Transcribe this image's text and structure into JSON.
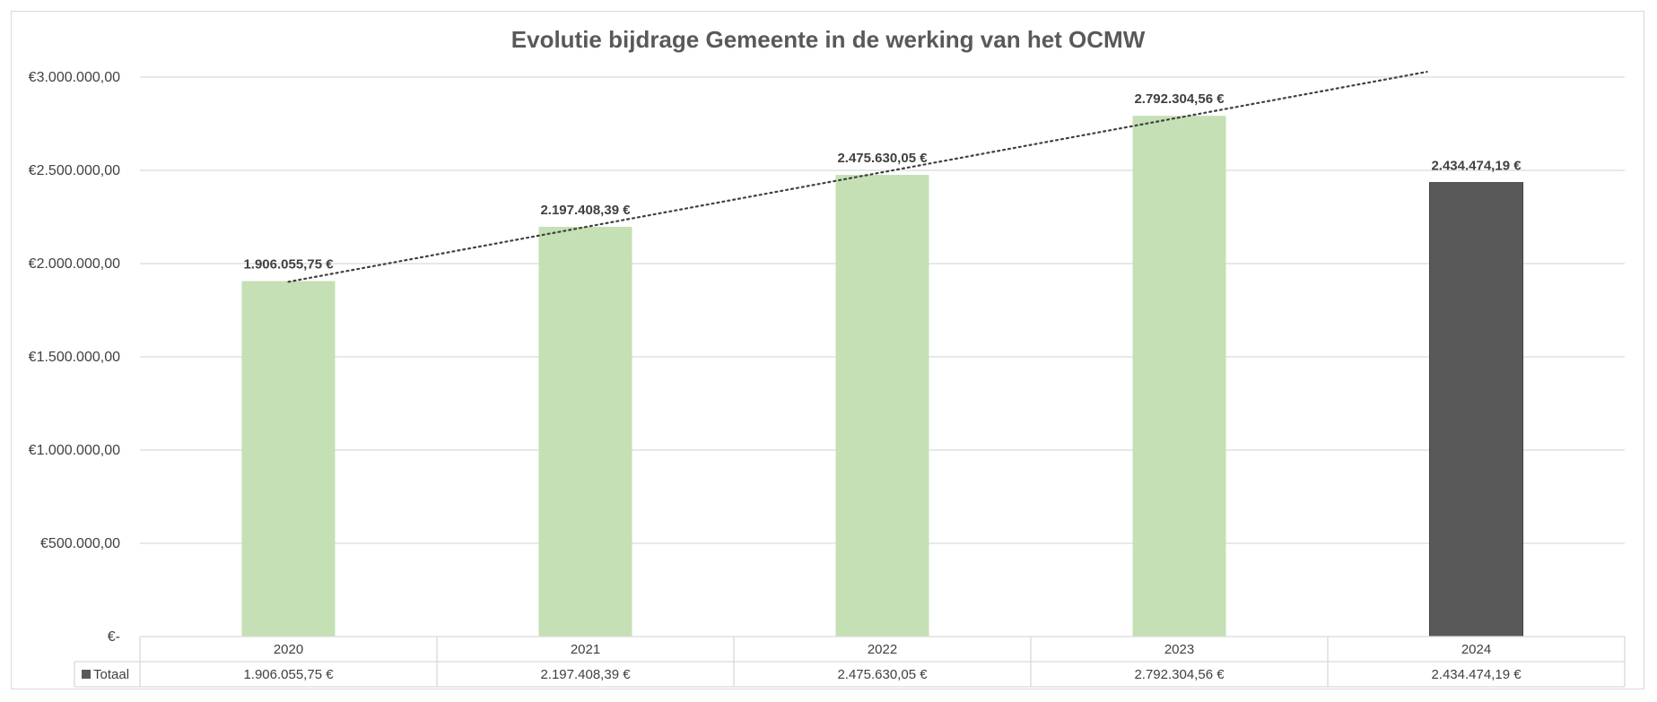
{
  "chart_data": {
    "type": "bar",
    "title": "Evolutie bijdrage Gemeente in de werking van het OCMW",
    "categories": [
      "2020",
      "2021",
      "2022",
      "2023",
      "2024"
    ],
    "series": [
      {
        "name": "Totaal",
        "values": [
          1906055.75,
          2197408.39,
          2475630.05,
          2792304.56,
          2434474.19
        ],
        "bar_colors": [
          "#c5e0b4",
          "#c5e0b4",
          "#c5e0b4",
          "#c5e0b4",
          "#595959"
        ]
      }
    ],
    "data_labels": [
      "1.906.055,75 €",
      "2.197.408,39 €",
      "2.475.630,05 €",
      "2.792.304,56 €",
      "2.434.474,19 €"
    ],
    "table_values": [
      "1.906.055,75 €",
      "2.197.408,39 €",
      "2.475.630,05 €",
      "2.792.304,56 €",
      "2.434.474,19 €"
    ],
    "ylim": [
      0,
      3000000
    ],
    "ytick_values": [
      0,
      500000,
      1000000,
      1500000,
      2000000,
      2500000,
      3000000
    ],
    "ytick_labels": [
      "€-",
      "€500.000,00",
      "€1.000.000,00",
      "€1.500.000,00",
      "€2.000.000,00",
      "€2.500.000,00",
      "€3.000.000,00"
    ],
    "trendline": {
      "type": "linear",
      "style": "dotted",
      "color": "#404040",
      "fitted_over": [
        "2020",
        "2021",
        "2022",
        "2023"
      ]
    },
    "grid": true,
    "data_table": true,
    "legend_key_color": "#595959"
  }
}
